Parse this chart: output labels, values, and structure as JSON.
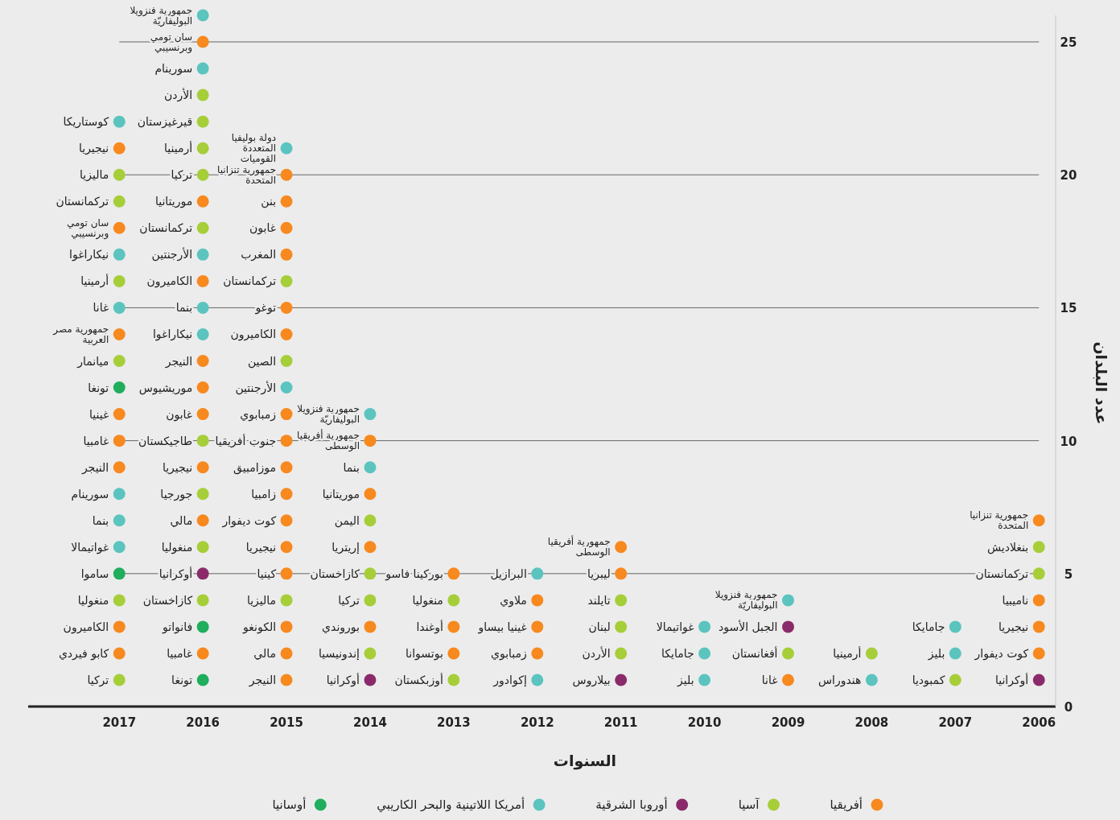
{
  "chart_data": {
    "type": "scatter",
    "xlabel": "السنوات",
    "ylabel": "عدد البلدان",
    "xlim": [
      2018.09,
      2005.8
    ],
    "xticks": [
      2017,
      2016,
      2015,
      2014,
      2013,
      2012,
      2011,
      2010,
      2009,
      2008,
      2007,
      2006
    ],
    "ylim": [
      0,
      26
    ],
    "yticks": [
      0,
      5,
      10,
      15,
      20,
      25
    ],
    "grid": "y",
    "legend": "bottom",
    "marker": "circle",
    "series": [
      {
        "name": "أفريقيا",
        "color": "#f7891f",
        "x": [
          2017,
          2017,
          2017,
          2017,
          2017,
          2017,
          2017,
          2017,
          2016,
          2016,
          2016,
          2016,
          2016,
          2016,
          2016,
          2016,
          2016,
          2015,
          2015,
          2015,
          2015,
          2015,
          2015,
          2015,
          2015,
          2015,
          2015,
          2015,
          2015,
          2015,
          2015,
          2015,
          2015,
          2014,
          2014,
          2014,
          2014,
          2013,
          2013,
          2013,
          2012,
          2012,
          2012,
          2011,
          2011,
          2009,
          2006,
          2006,
          2006,
          2006
        ],
        "values": [
          2,
          3,
          9,
          10,
          11,
          14,
          18,
          21,
          2,
          7,
          9,
          11,
          12,
          13,
          16,
          19,
          25,
          1,
          2,
          3,
          5,
          6,
          7,
          8,
          9,
          10,
          11,
          14,
          15,
          17,
          18,
          19,
          20,
          3,
          6,
          8,
          10,
          2,
          3,
          5,
          2,
          3,
          4,
          5,
          6,
          1,
          2,
          3,
          4,
          7
        ],
        "value_labels": [
          "كابو فيردي",
          "الكاميرون",
          "النيجر",
          "غامبيا",
          "غينيا",
          "جمهورية مصر العربية",
          "سان تومي وبرنسيبي",
          "نيجيريا",
          "غامبيا",
          "مالي",
          "نيجيريا",
          "غابون",
          "موريشيوس",
          "النيجر",
          "الكاميرون",
          "موريتانيا",
          "سان تومي وبرنسيبي",
          "النيجر",
          "مالي",
          "الكونغو",
          "كينيا",
          "نيجيريا",
          "كوت ديفوار",
          "زامبيا",
          "موزامبيق",
          "جنوب أفريقيا",
          "زمبابوي",
          "الكاميرون",
          "توغو",
          "المغرب",
          "غابون",
          "بنن",
          "جمهورية تنزانيا المتحدة",
          "بوروندي",
          "إريتريا",
          "موريتانيا",
          "جمهورية أفريقيا الوسطى",
          "بوتسوانا",
          "أوغندا",
          "بوركينا فاسو",
          "زمبابوي",
          "غينيا بيساو",
          "ملاوي",
          "ليبريا",
          "جمهورية أفريقيا الوسطى",
          "غانا",
          "كوت ديفوار",
          "نيجيريا",
          "ناميبيا",
          "جمهورية تنزانيا المتحدة"
        ]
      },
      {
        "name": "آسيا",
        "color": "#a6ce39",
        "x": [
          2017,
          2017,
          2017,
          2017,
          2017,
          2017,
          2016,
          2016,
          2016,
          2016,
          2016,
          2016,
          2016,
          2016,
          2016,
          2015,
          2015,
          2015,
          2014,
          2014,
          2014,
          2014,
          2013,
          2013,
          2011,
          2011,
          2011,
          2009,
          2008,
          2007,
          2006,
          2006
        ],
        "values": [
          1,
          4,
          13,
          16,
          19,
          20,
          4,
          6,
          8,
          10,
          18,
          20,
          21,
          22,
          23,
          4,
          13,
          16,
          2,
          4,
          5,
          7,
          1,
          4,
          2,
          3,
          4,
          2,
          2,
          1,
          5,
          6
        ],
        "value_labels": [
          "تركيا",
          "منغوليا",
          "ميانمار",
          "أرمينيا",
          "تركمانستان",
          "ماليزيا",
          "كازاخستان",
          "منغوليا",
          "جورجيا",
          "طاجيكستان",
          "تركمانستان",
          "تركيا",
          "أرمينيا",
          "قيرغيزستان",
          "الأردن",
          "ماليزيا",
          "الصين",
          "تركمانستان",
          "إندونيسيا",
          "تركيا",
          "كازاخستان",
          "اليمن",
          "أوزبكستان",
          "منغوليا",
          "الأردن",
          "لبنان",
          "تايلند",
          "أفغانستان",
          "أرمينيا",
          "كمبوديا",
          "تركمانستان",
          "بنغلاديش"
        ]
      },
      {
        "name": "أوروبا الشرقية",
        "color": "#8b2a6b",
        "x": [
          2016,
          2014,
          2011,
          2009,
          2006
        ],
        "values": [
          5,
          1,
          1,
          3,
          1
        ],
        "value_labels": [
          "أوكرانيا",
          "أوكرانيا",
          "بيلاروس",
          "الجبل الأسود",
          "أوكرانيا"
        ]
      },
      {
        "name": "أمريكا اللاتينية والبحر الكاريبي",
        "color": "#5bc4bf",
        "x": [
          2017,
          2017,
          2017,
          2017,
          2017,
          2017,
          2016,
          2016,
          2016,
          2016,
          2016,
          2015,
          2015,
          2014,
          2014,
          2012,
          2012,
          2010,
          2010,
          2010,
          2009,
          2008,
          2007,
          2007
        ],
        "values": [
          6,
          7,
          8,
          15,
          17,
          22,
          14,
          15,
          17,
          24,
          26,
          12,
          21,
          9,
          11,
          1,
          5,
          1,
          2,
          3,
          4,
          1,
          2,
          3
        ],
        "value_labels": [
          "غواتيمالا",
          "بنما",
          "سورينام",
          "غانا",
          "نيكاراغوا",
          "كوستاريكا",
          "نيكاراغوا",
          "بنما",
          "الأرجنتين",
          "سورينام",
          "جمهورية فنزويلا البوليفاريّة",
          "الأرجنتين",
          "دولة بوليفيا المتعددة القوميات",
          "بنما",
          "جمهورية فنزويلا البوليفاريّة",
          "إكوادور",
          "البرازيل",
          "بليز",
          "جامايكا",
          "غواتيمالا",
          "جمهورية فنزويلا البوليفاريّة",
          "هندوراس",
          "بليز",
          "جامايكا"
        ]
      },
      {
        "name": "أوسانيا",
        "color": "#1fae5b",
        "x": [
          2017,
          2017,
          2016,
          2016
        ],
        "values": [
          5,
          12,
          1,
          3
        ],
        "value_labels": [
          "ساموا",
          "تونغا",
          "تونغا",
          "فانواتو"
        ]
      }
    ]
  }
}
